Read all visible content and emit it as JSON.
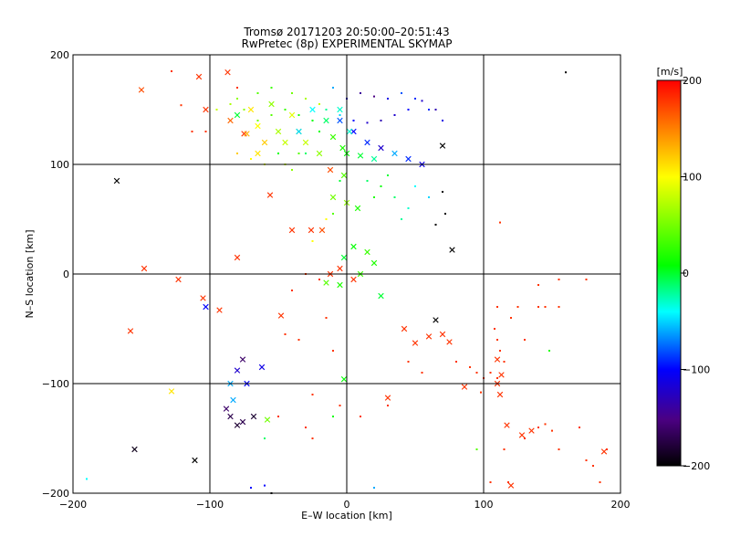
{
  "chart_data": {
    "type": "scatter",
    "title_line1": "Tromsø 20171203 20:50:00–20:51:43",
    "title_line2": "RwPretec (8p) EXPERIMENTAL SKYMAP",
    "xlabel": "E–W location [km]",
    "ylabel": "N–S location [km]",
    "xlim": [
      -200,
      200
    ],
    "ylim": [
      -200,
      200
    ],
    "xticks": [
      -200,
      -100,
      0,
      100,
      200
    ],
    "yticks": [
      -200,
      -100,
      0,
      100,
      200
    ],
    "grid": true,
    "colorbar": {
      "label": "[m/s]",
      "range": [
        -200,
        200
      ],
      "ticks": [
        -200,
        -100,
        0,
        100,
        200
      ]
    },
    "points_cross": [
      [
        -150,
        168,
        170
      ],
      [
        -108,
        180,
        180
      ],
      [
        -103,
        150,
        180
      ],
      [
        -87,
        184,
        180
      ],
      [
        -75,
        128,
        180
      ],
      [
        -65,
        135,
        100
      ],
      [
        -80,
        145,
        0
      ],
      [
        -60,
        120,
        120
      ],
      [
        -45,
        120,
        80
      ],
      [
        -35,
        130,
        60
      ],
      [
        -168,
        85,
        -200
      ],
      [
        -56,
        72,
        180
      ],
      [
        -40,
        40,
        180
      ],
      [
        -26,
        40,
        180
      ],
      [
        -12,
        95,
        170
      ],
      [
        -5,
        140,
        -80
      ],
      [
        5,
        130,
        -100
      ],
      [
        15,
        120,
        -90
      ],
      [
        25,
        115,
        -120
      ],
      [
        35,
        110,
        -60
      ],
      [
        45,
        105,
        -90
      ],
      [
        55,
        100,
        -110
      ],
      [
        70,
        117,
        -200
      ],
      [
        77,
        22,
        -200
      ],
      [
        -148,
        5,
        180
      ],
      [
        -123,
        -5,
        180
      ],
      [
        -105,
        -22,
        180
      ],
      [
        -103,
        -30,
        -100
      ],
      [
        -93,
        -33,
        180
      ],
      [
        -80,
        15,
        180
      ],
      [
        -48,
        -38,
        180
      ],
      [
        -158,
        -52,
        180
      ],
      [
        -76,
        -78,
        -160
      ],
      [
        -62,
        -85,
        -110
      ],
      [
        -80,
        -88,
        -120
      ],
      [
        -73,
        -100,
        -100
      ],
      [
        -85,
        -100,
        -60
      ],
      [
        -83,
        -115,
        -60
      ],
      [
        -88,
        -123,
        -160
      ],
      [
        -85,
        -130,
        -170
      ],
      [
        -80,
        -138,
        -180
      ],
      [
        -76,
        -135,
        -170
      ],
      [
        -68,
        -130,
        -180
      ],
      [
        -58,
        -133,
        50
      ],
      [
        -128,
        -107,
        110
      ],
      [
        -155,
        -160,
        -190
      ],
      [
        -111,
        -170,
        -200
      ],
      [
        -2,
        -96,
        10
      ],
      [
        -12,
        0,
        180
      ],
      [
        -5,
        5,
        180
      ],
      [
        5,
        -5,
        180
      ],
      [
        25,
        -20,
        0
      ],
      [
        42,
        -50,
        180
      ],
      [
        50,
        -63,
        180
      ],
      [
        60,
        -57,
        180
      ],
      [
        65,
        -42,
        -200
      ],
      [
        70,
        -55,
        180
      ],
      [
        75,
        -62,
        180
      ],
      [
        86,
        -103,
        180
      ],
      [
        110,
        -100,
        180
      ],
      [
        112,
        -110,
        180
      ],
      [
        110,
        -78,
        180
      ],
      [
        113,
        -92,
        180
      ],
      [
        120,
        -193,
        180
      ],
      [
        117,
        -138,
        180
      ],
      [
        128,
        -147,
        180
      ],
      [
        135,
        -143,
        180
      ],
      [
        188,
        -162,
        180
      ],
      [
        30,
        -113,
        180
      ],
      [
        -18,
        40,
        170
      ],
      [
        0,
        65,
        60
      ],
      [
        -10,
        70,
        50
      ],
      [
        -2,
        90,
        40
      ],
      [
        8,
        60,
        20
      ],
      [
        5,
        25,
        10
      ],
      [
        15,
        20,
        30
      ],
      [
        20,
        10,
        20
      ],
      [
        10,
        0,
        30
      ],
      [
        -5,
        -10,
        20
      ],
      [
        -15,
        -8,
        40
      ],
      [
        -2,
        15,
        0
      ],
      [
        2,
        130,
        -30
      ],
      [
        -3,
        115,
        20
      ],
      [
        -70,
        150,
        110
      ],
      [
        -73,
        128,
        130
      ],
      [
        -65,
        110,
        110
      ],
      [
        -85,
        140,
        160
      ],
      [
        -55,
        155,
        60
      ],
      [
        -50,
        130,
        70
      ],
      [
        -30,
        120,
        80
      ],
      [
        -20,
        110,
        60
      ],
      [
        -10,
        125,
        30
      ],
      [
        0,
        110,
        10
      ],
      [
        10,
        108,
        0
      ],
      [
        20,
        105,
        -20
      ],
      [
        -25,
        150,
        -40
      ],
      [
        -15,
        140,
        -10
      ],
      [
        -5,
        150,
        -30
      ],
      [
        -35,
        130,
        -50
      ],
      [
        -40,
        145,
        90
      ]
    ],
    "points_dot": [
      [
        -190,
        -187,
        -40
      ],
      [
        -128,
        185,
        180
      ],
      [
        -121,
        154,
        180
      ],
      [
        -113,
        130,
        180
      ],
      [
        -103,
        130,
        180
      ],
      [
        -80,
        170,
        180
      ],
      [
        -80,
        160,
        60
      ],
      [
        -65,
        165,
        40
      ],
      [
        -55,
        170,
        30
      ],
      [
        -40,
        165,
        50
      ],
      [
        -30,
        160,
        70
      ],
      [
        -20,
        155,
        80
      ],
      [
        -10,
        170,
        -60
      ],
      [
        0,
        160,
        -120
      ],
      [
        10,
        165,
        -140
      ],
      [
        20,
        162,
        -150
      ],
      [
        30,
        160,
        -110
      ],
      [
        40,
        165,
        -80
      ],
      [
        50,
        160,
        -90
      ],
      [
        60,
        150,
        -90
      ],
      [
        70,
        140,
        -110
      ],
      [
        65,
        150,
        -130
      ],
      [
        55,
        158,
        -120
      ],
      [
        45,
        150,
        -100
      ],
      [
        35,
        145,
        -120
      ],
      [
        25,
        140,
        -130
      ],
      [
        15,
        138,
        -120
      ],
      [
        5,
        140,
        -100
      ],
      [
        -5,
        145,
        -50
      ],
      [
        -15,
        150,
        -20
      ],
      [
        -25,
        140,
        10
      ],
      [
        -35,
        145,
        20
      ],
      [
        -45,
        150,
        30
      ],
      [
        -55,
        145,
        40
      ],
      [
        -65,
        140,
        50
      ],
      [
        -75,
        150,
        60
      ],
      [
        -85,
        155,
        70
      ],
      [
        -95,
        150,
        80
      ],
      [
        70,
        75,
        -200
      ],
      [
        72,
        55,
        -200
      ],
      [
        65,
        45,
        -200
      ],
      [
        60,
        70,
        -50
      ],
      [
        50,
        80,
        -40
      ],
      [
        45,
        60,
        -30
      ],
      [
        40,
        50,
        -20
      ],
      [
        35,
        70,
        -10
      ],
      [
        30,
        90,
        0
      ],
      [
        25,
        80,
        10
      ],
      [
        20,
        70,
        20
      ],
      [
        -20,
        130,
        10
      ],
      [
        -30,
        110,
        -10
      ],
      [
        -5,
        85,
        0
      ],
      [
        15,
        85,
        -10
      ],
      [
        -15,
        50,
        100
      ],
      [
        -10,
        55,
        40
      ],
      [
        -25,
        30,
        100
      ],
      [
        -20,
        -5,
        180
      ],
      [
        -30,
        0,
        180
      ],
      [
        -40,
        -15,
        180
      ],
      [
        -35,
        -60,
        180
      ],
      [
        -45,
        -55,
        180
      ],
      [
        -15,
        -40,
        180
      ],
      [
        -10,
        -70,
        180
      ],
      [
        -25,
        -110,
        180
      ],
      [
        -5,
        -120,
        180
      ],
      [
        10,
        -130,
        180
      ],
      [
        30,
        -120,
        180
      ],
      [
        45,
        -80,
        180
      ],
      [
        55,
        -90,
        180
      ],
      [
        80,
        -80,
        180
      ],
      [
        90,
        -85,
        180
      ],
      [
        95,
        -90,
        180
      ],
      [
        100,
        -95,
        180
      ],
      [
        98,
        -108,
        180
      ],
      [
        105,
        -90,
        180
      ],
      [
        110,
        -95,
        180
      ],
      [
        112,
        -70,
        180
      ],
      [
        108,
        -50,
        180
      ],
      [
        110,
        -60,
        180
      ],
      [
        115,
        -80,
        180
      ],
      [
        105,
        -190,
        180
      ],
      [
        118,
        -190,
        180
      ],
      [
        115,
        -160,
        180
      ],
      [
        130,
        -150,
        180
      ],
      [
        140,
        -140,
        180
      ],
      [
        145,
        -137,
        180
      ],
      [
        150,
        -143,
        180
      ],
      [
        155,
        -160,
        180
      ],
      [
        170,
        -140,
        180
      ],
      [
        175,
        -170,
        180
      ],
      [
        180,
        -175,
        180
      ],
      [
        185,
        -190,
        180
      ],
      [
        190,
        -160,
        180
      ],
      [
        110,
        -30,
        180
      ],
      [
        125,
        -30,
        180
      ],
      [
        140,
        -30,
        180
      ],
      [
        140,
        -10,
        180
      ],
      [
        155,
        -30,
        180
      ],
      [
        155,
        -5,
        180
      ],
      [
        175,
        -5,
        180
      ],
      [
        160,
        184,
        -200
      ],
      [
        120,
        -40,
        180
      ],
      [
        130,
        -60,
        180
      ],
      [
        145,
        -30,
        180
      ],
      [
        148,
        -70,
        20
      ],
      [
        95,
        -160,
        40
      ],
      [
        112,
        47,
        180
      ],
      [
        -50,
        -130,
        180
      ],
      [
        -30,
        -140,
        180
      ],
      [
        -25,
        -150,
        180
      ],
      [
        -60,
        -150,
        -10
      ],
      [
        -10,
        -130,
        10
      ],
      [
        -60,
        -193,
        -100
      ],
      [
        -55,
        -200,
        -200
      ],
      [
        -70,
        -195,
        -100
      ],
      [
        20,
        -195,
        -60
      ],
      [
        -50,
        110,
        10
      ],
      [
        -35,
        110,
        40
      ],
      [
        -40,
        95,
        60
      ],
      [
        -45,
        100,
        80
      ],
      [
        -60,
        100,
        90
      ],
      [
        -70,
        105,
        100
      ],
      [
        -80,
        110,
        120
      ]
    ]
  }
}
